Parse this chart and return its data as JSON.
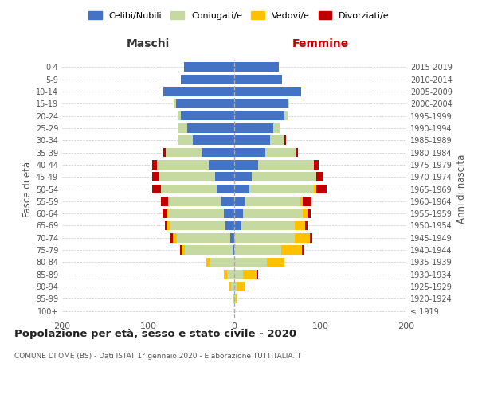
{
  "age_groups": [
    "100+",
    "95-99",
    "90-94",
    "85-89",
    "80-84",
    "75-79",
    "70-74",
    "65-69",
    "60-64",
    "55-59",
    "50-54",
    "45-49",
    "40-44",
    "35-39",
    "30-34",
    "25-29",
    "20-24",
    "15-19",
    "10-14",
    "5-9",
    "0-4"
  ],
  "birth_years": [
    "≤ 1919",
    "1920-1924",
    "1925-1929",
    "1930-1934",
    "1935-1939",
    "1940-1944",
    "1945-1949",
    "1950-1954",
    "1955-1959",
    "1960-1964",
    "1965-1969",
    "1970-1974",
    "1975-1979",
    "1980-1984",
    "1985-1989",
    "1990-1994",
    "1995-1999",
    "2000-2004",
    "2005-2009",
    "2010-2014",
    "2015-2019"
  ],
  "males_celibi": [
    0,
    0,
    0,
    0,
    0,
    2,
    5,
    10,
    12,
    15,
    20,
    22,
    30,
    38,
    48,
    55,
    62,
    68,
    82,
    62,
    58
  ],
  "males_coniugati": [
    0,
    2,
    4,
    8,
    28,
    55,
    62,
    65,
    65,
    62,
    65,
    65,
    60,
    42,
    18,
    10,
    4,
    2,
    0,
    0,
    0
  ],
  "males_vedovi": [
    0,
    0,
    2,
    4,
    4,
    4,
    4,
    3,
    2,
    0,
    0,
    0,
    0,
    0,
    0,
    0,
    0,
    0,
    0,
    0,
    0
  ],
  "males_divorziati": [
    0,
    0,
    0,
    0,
    0,
    2,
    3,
    3,
    4,
    8,
    10,
    8,
    5,
    2,
    0,
    0,
    0,
    0,
    0,
    0,
    0
  ],
  "females_nubili": [
    0,
    0,
    0,
    0,
    0,
    0,
    0,
    8,
    10,
    12,
    18,
    20,
    28,
    36,
    42,
    45,
    58,
    62,
    78,
    56,
    52
  ],
  "females_coniugate": [
    0,
    2,
    4,
    10,
    38,
    55,
    70,
    62,
    70,
    65,
    75,
    75,
    65,
    36,
    16,
    8,
    4,
    2,
    0,
    0,
    0
  ],
  "females_vedove": [
    0,
    2,
    8,
    16,
    20,
    24,
    18,
    12,
    5,
    3,
    2,
    0,
    0,
    0,
    0,
    0,
    0,
    0,
    0,
    0,
    0
  ],
  "females_divorziate": [
    0,
    0,
    0,
    2,
    0,
    2,
    3,
    3,
    4,
    10,
    12,
    8,
    5,
    2,
    2,
    0,
    0,
    0,
    0,
    0,
    0
  ],
  "colors": {
    "celibi": "#4472c4",
    "coniugati": "#c5d9a0",
    "vedovi": "#ffc000",
    "divorziati": "#c00000"
  },
  "xlim": 200,
  "title": "Popolazione per età, sesso e stato civile - 2020",
  "subtitle": "COMUNE DI OME (BS) - Dati ISTAT 1° gennaio 2020 - Elaborazione TUTTITALIA.IT",
  "ylabel_left": "Fasce di età",
  "ylabel_right": "Anni di nascita",
  "xlabel_left": "Maschi",
  "xlabel_right": "Femmine",
  "legend_labels": [
    "Celibi/Nubili",
    "Coniugati/e",
    "Vedovi/e",
    "Divorziati/e"
  ],
  "background_color": "#ffffff",
  "grid_color": "#cccccc"
}
